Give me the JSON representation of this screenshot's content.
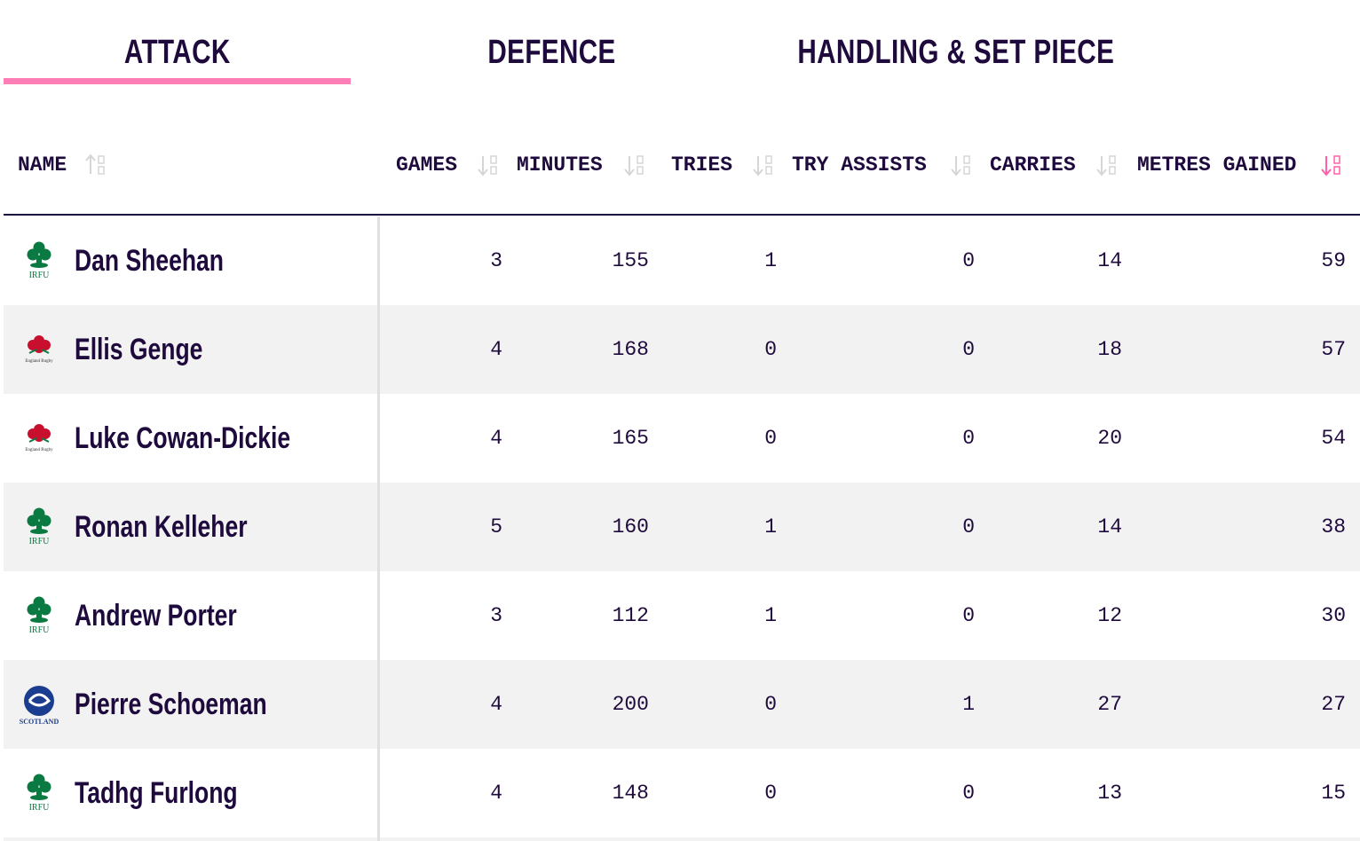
{
  "tabs": [
    {
      "label": "ATTACK",
      "active": true
    },
    {
      "label": "DEFENCE",
      "active": false
    },
    {
      "label": "HANDLING & SET PIECE",
      "active": false
    }
  ],
  "table": {
    "columns": [
      "NAME",
      "GAMES",
      "MINUTES",
      "TRIES",
      "TRY ASSISTS",
      "CARRIES",
      "METRES GAINED"
    ],
    "sort_column": 6,
    "rows": [
      {
        "logo": "IRFU",
        "name": "Dan Sheehan",
        "values": [
          3,
          155,
          1,
          0,
          14,
          59
        ]
      },
      {
        "logo": "England Rugby",
        "name": "Ellis Genge",
        "values": [
          4,
          168,
          0,
          0,
          18,
          57
        ]
      },
      {
        "logo": "England Rugby",
        "name": "Luke Cowan-Dickie",
        "values": [
          4,
          165,
          0,
          0,
          20,
          54
        ]
      },
      {
        "logo": "IRFU",
        "name": "Ronan Kelleher",
        "values": [
          5,
          160,
          1,
          0,
          14,
          38
        ]
      },
      {
        "logo": "IRFU",
        "name": "Andrew Porter",
        "values": [
          3,
          112,
          1,
          0,
          12,
          30
        ]
      },
      {
        "logo": "SCOTLAND",
        "name": "Pierre Schoeman",
        "values": [
          4,
          200,
          0,
          1,
          27,
          27
        ]
      },
      {
        "logo": "IRFU",
        "name": "Tadhg Furlong",
        "values": [
          4,
          148,
          0,
          0,
          13,
          15
        ]
      }
    ]
  }
}
